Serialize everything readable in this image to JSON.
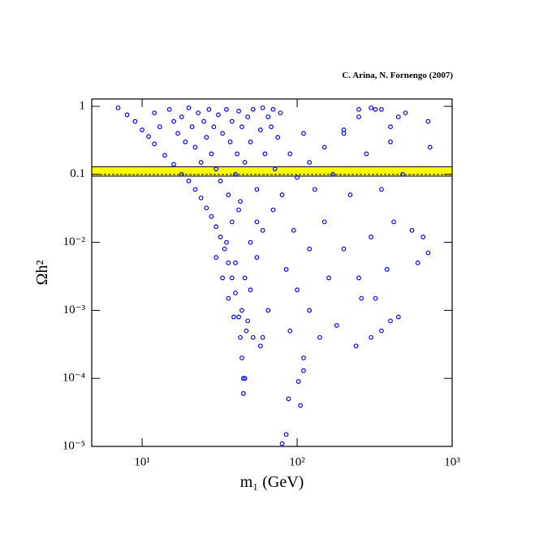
{
  "chart_data": {
    "type": "scatter",
    "annotation": "C. Arina, N. Fornengo (2007)",
    "xlabel": "m₁  (GeV)",
    "ylabel": "Ωh²",
    "xscale": "log",
    "yscale": "log",
    "xlim": [
      4.73,
      1000
    ],
    "ylim": [
      1e-05,
      1.28
    ],
    "xticks": [
      {
        "value": 10,
        "label": "10¹"
      },
      {
        "value": 100,
        "label": "10²"
      },
      {
        "value": 1000,
        "label": "10³"
      }
    ],
    "yticks": [
      1,
      0.1,
      {
        "value": 0.01,
        "label": "10⁻²"
      },
      {
        "value": 0.001,
        "label": "10⁻³"
      },
      {
        "value": 0.0001,
        "label": "10⁻⁴"
      },
      {
        "value": 1e-05,
        "label": "10⁻⁵"
      }
    ],
    "band": {
      "range": [
        0.094,
        0.129
      ],
      "color": "#ffff00"
    },
    "color": "#0000ff",
    "x": [
      7,
      8,
      9,
      10,
      11,
      12,
      14,
      16,
      18,
      20,
      22,
      24,
      26,
      28,
      30,
      32,
      34,
      36,
      38,
      40,
      42,
      43,
      44,
      45,
      45,
      46,
      47,
      50,
      55,
      60,
      70,
      80,
      100,
      120,
      150,
      200,
      250,
      300,
      320,
      12,
      13,
      15,
      16,
      17,
      18,
      19,
      20,
      21,
      22,
      23,
      24,
      25,
      26,
      27,
      28,
      29,
      30,
      31,
      32,
      33,
      35,
      36,
      37,
      38,
      40,
      41,
      42,
      43,
      44,
      46,
      48,
      50,
      52,
      55,
      58,
      60,
      62,
      65,
      68,
      70,
      72,
      75,
      78,
      30,
      33,
      35,
      38,
      40,
      42,
      36,
      39,
      44,
      46,
      48,
      50,
      52,
      55,
      58,
      90,
      110,
      130,
      150,
      170,
      200,
      220,
      250,
      280,
      300,
      320,
      350,
      380,
      400,
      420,
      450,
      480,
      500,
      550,
      600,
      650,
      700,
      720,
      700,
      90,
      100,
      110,
      120,
      140,
      160,
      180,
      240,
      260,
      300,
      350,
      400,
      85,
      95,
      120,
      200,
      250,
      350,
      400,
      450,
      80,
      85,
      88,
      105,
      102,
      110,
      60,
      65
    ],
    "values": [
      0.95,
      0.75,
      0.6,
      0.45,
      0.36,
      0.28,
      0.19,
      0.14,
      0.1,
      0.08,
      0.06,
      0.045,
      0.032,
      0.024,
      0.017,
      0.012,
      0.008,
      0.005,
      0.003,
      0.0018,
      0.0008,
      0.0004,
      0.0002,
      0.0001,
      6e-05,
      0.0001,
      0.0005,
      0.002,
      0.006,
      0.015,
      0.03,
      0.05,
      0.09,
      0.15,
      0.25,
      0.45,
      0.7,
      0.95,
      0.9,
      0.8,
      0.5,
      0.9,
      0.6,
      0.4,
      0.7,
      0.3,
      0.95,
      0.5,
      0.25,
      0.8,
      0.15,
      0.6,
      0.35,
      0.9,
      0.2,
      0.5,
      0.12,
      0.75,
      0.08,
      0.4,
      0.9,
      0.05,
      0.3,
      0.6,
      0.1,
      0.2,
      0.85,
      0.04,
      0.5,
      0.15,
      0.7,
      0.3,
      0.9,
      0.06,
      0.45,
      0.95,
      0.2,
      0.7,
      0.5,
      0.9,
      0.12,
      0.35,
      0.8,
      0.006,
      0.003,
      0.01,
      0.02,
      0.005,
      0.03,
      0.0015,
      0.0008,
      0.001,
      0.003,
      0.0007,
      0.01,
      0.0004,
      0.02,
      0.0003,
      0.2,
      0.4,
      0.06,
      0.02,
      0.1,
      0.008,
      0.05,
      0.003,
      0.2,
      0.012,
      0.0015,
      0.06,
      0.004,
      0.3,
      0.02,
      0.0008,
      0.1,
      0.8,
      0.015,
      0.005,
      0.012,
      0.007,
      0.25,
      0.6,
      0.0005,
      0.002,
      0.0002,
      0.001,
      0.0004,
      0.003,
      0.0006,
      0.0003,
      0.0015,
      0.0004,
      0.0005,
      0.0007,
      0.004,
      0.015,
      0.008,
      0.4,
      0.9,
      0.9,
      0.5,
      0.7,
      1.1e-05,
      1.5e-05,
      5e-05,
      4e-05,
      9e-05,
      0.00013,
      0.0004,
      0.001
    ]
  }
}
